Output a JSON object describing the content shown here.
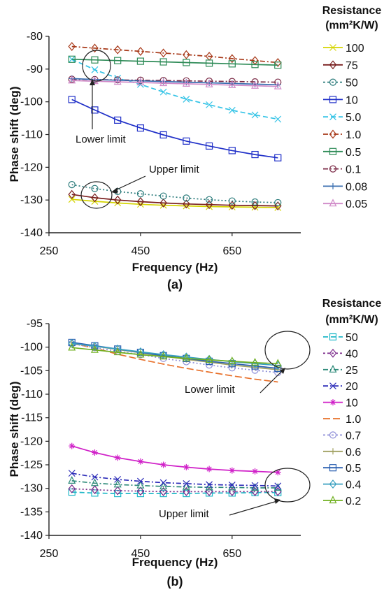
{
  "chart_data": [
    {
      "type": "line",
      "panel_label": "(a)",
      "xlabel": "Frequency (Hz)",
      "ylabel": "Phase shift (deg)",
      "xlim": [
        250,
        800
      ],
      "ylim": [
        -140,
        -80
      ],
      "xticks": [
        250,
        450,
        650
      ],
      "yticks": [
        -80,
        -90,
        -100,
        -110,
        -120,
        -130,
        -140
      ],
      "legend_title_line1": "Resistance",
      "legend_title_line2": "(mm²K/W)",
      "legend_position": "right",
      "x": [
        300,
        350,
        400,
        450,
        500,
        550,
        600,
        650,
        700,
        750
      ],
      "series": [
        {
          "name": "100",
          "color": "#d4d400",
          "marker": "x",
          "dash": "solid",
          "values": [
            -129.8,
            -130.4,
            -130.9,
            -131.3,
            -131.6,
            -131.8,
            -132.0,
            -132.1,
            -132.2,
            -132.3
          ]
        },
        {
          "name": "75",
          "color": "#7a1f1f",
          "marker": "diamond",
          "dash": "solid",
          "values": [
            -128.3,
            -129.3,
            -130.0,
            -130.5,
            -130.9,
            -131.2,
            -131.4,
            -131.6,
            -131.7,
            -131.8
          ]
        },
        {
          "name": "50",
          "color": "#2e7d7d",
          "marker": "circle",
          "dash": "dot",
          "values": [
            -125.3,
            -126.5,
            -127.4,
            -128.1,
            -128.8,
            -129.4,
            -129.9,
            -130.3,
            -130.6,
            -130.8
          ]
        },
        {
          "name": "10",
          "color": "#1f2fc8",
          "marker": "square",
          "dash": "solid",
          "values": [
            -99.3,
            -102.5,
            -105.6,
            -108.0,
            -110.1,
            -112.0,
            -113.5,
            -114.9,
            -116.1,
            -117.1
          ]
        },
        {
          "name": "5.0",
          "color": "#33c3e6",
          "marker": "x",
          "dash": "dash",
          "values": [
            -87.0,
            -90.2,
            -92.8,
            -94.7,
            -97.0,
            -99.2,
            -100.9,
            -102.6,
            -104.0,
            -105.3
          ]
        },
        {
          "name": "1.0",
          "color": "#a83a1a",
          "marker": "diamond",
          "dash": "dashdot",
          "values": [
            -83.1,
            -83.6,
            -84.1,
            -84.6,
            -85.1,
            -85.6,
            -86.1,
            -86.8,
            -87.4,
            -88.0
          ]
        },
        {
          "name": "0.5",
          "color": "#2e8b57",
          "marker": "square",
          "dash": "solid",
          "values": [
            -87.0,
            -87.2,
            -87.4,
            -87.6,
            -87.8,
            -88.0,
            -88.2,
            -88.4,
            -88.6,
            -88.8
          ]
        },
        {
          "name": "0.1",
          "color": "#7b2a46",
          "marker": "circle",
          "dash": "dashdot",
          "values": [
            -93.1,
            -93.2,
            -93.3,
            -93.4,
            -93.5,
            -93.6,
            -93.7,
            -93.8,
            -93.9,
            -94.0
          ]
        },
        {
          "name": "0.08",
          "color": "#3a6fb0",
          "marker": "plus",
          "dash": "solid",
          "values": [
            -92.9,
            -93.2,
            -93.4,
            -93.6,
            -93.8,
            -94.0,
            -94.2,
            -94.4,
            -94.6,
            -94.8
          ]
        },
        {
          "name": "0.05",
          "color": "#d08ac8",
          "marker": "triangle",
          "dash": "solid",
          "values": [
            -93.5,
            -93.7,
            -93.9,
            -94.1,
            -94.3,
            -94.5,
            -94.7,
            -94.9,
            -95.1,
            -95.3
          ]
        }
      ],
      "annotations": [
        {
          "text": "Lower limit"
        },
        {
          "text": "Upper limit"
        }
      ]
    },
    {
      "type": "line",
      "panel_label": "(b)",
      "xlabel": "Frequency (Hz)",
      "ylabel": "Phase shift (deg)",
      "xlim": [
        250,
        800
      ],
      "ylim": [
        -140,
        -95
      ],
      "xticks": [
        250,
        450,
        650
      ],
      "yticks": [
        -95,
        -100,
        -105,
        -110,
        -115,
        -120,
        -125,
        -130,
        -135,
        -140
      ],
      "legend_title_line1": "Resistance",
      "legend_title_line2": "(mm²K/W)",
      "legend_position": "right",
      "x": [
        300,
        350,
        400,
        450,
        500,
        550,
        600,
        650,
        700,
        750
      ],
      "series": [
        {
          "name": "50",
          "color": "#20b8c8",
          "marker": "square",
          "dash": "dash",
          "values": [
            -130.8,
            -131.0,
            -131.1,
            -131.1,
            -131.1,
            -131.1,
            -131.0,
            -131.0,
            -130.9,
            -130.9
          ]
        },
        {
          "name": "40",
          "color": "#7b2a8a",
          "marker": "diamond",
          "dash": "dot",
          "values": [
            -130.1,
            -130.3,
            -130.5,
            -130.6,
            -130.7,
            -130.7,
            -130.7,
            -130.7,
            -130.7,
            -130.7
          ]
        },
        {
          "name": "25",
          "color": "#2e8b7a",
          "marker": "triangle",
          "dash": "dashdot",
          "values": [
            -128.4,
            -128.9,
            -129.2,
            -129.4,
            -129.6,
            -129.7,
            -129.8,
            -129.8,
            -129.9,
            -129.9
          ]
        },
        {
          "name": "20",
          "color": "#2c2cb8",
          "marker": "x",
          "dash": "dashdot",
          "values": [
            -126.8,
            -127.6,
            -128.1,
            -128.5,
            -128.8,
            -129.0,
            -129.2,
            -129.3,
            -129.4,
            -129.5
          ]
        },
        {
          "name": "10",
          "color": "#d020c8",
          "marker": "star",
          "dash": "solid",
          "values": [
            -121.0,
            -122.4,
            -123.5,
            -124.3,
            -125.0,
            -125.5,
            -125.9,
            -126.2,
            -126.4,
            -126.6
          ]
        },
        {
          "name": "1.0",
          "color": "#e8702a",
          "marker": "none",
          "dash": "longdash",
          "values": [
            -99.2,
            -100.2,
            -101.5,
            -102.6,
            -103.6,
            -104.5,
            -105.3,
            -106.1,
            -106.8,
            -107.4
          ]
        },
        {
          "name": "0.7",
          "color": "#9090d8",
          "marker": "circle",
          "dash": "dot",
          "values": [
            -99.3,
            -100.1,
            -100.9,
            -101.6,
            -102.4,
            -103.1,
            -103.8,
            -104.4,
            -104.9,
            -105.4
          ]
        },
        {
          "name": "0.6",
          "color": "#a0a060",
          "marker": "plus",
          "dash": "solid",
          "values": [
            -99.1,
            -99.8,
            -100.5,
            -101.2,
            -101.9,
            -102.6,
            -103.2,
            -103.8,
            -104.3,
            -104.8
          ]
        },
        {
          "name": "0.5",
          "color": "#2a5fb0",
          "marker": "square",
          "dash": "solid",
          "values": [
            -99.0,
            -99.7,
            -100.4,
            -101.1,
            -101.8,
            -102.4,
            -103.0,
            -103.5,
            -104.0,
            -104.5
          ]
        },
        {
          "name": "0.4",
          "color": "#3aa0c0",
          "marker": "diamond",
          "dash": "solid",
          "values": [
            -99.2,
            -99.8,
            -100.4,
            -101.0,
            -101.6,
            -102.1,
            -102.6,
            -103.1,
            -103.5,
            -103.9
          ]
        },
        {
          "name": "0.2",
          "color": "#70b020",
          "marker": "triangle",
          "dash": "solid",
          "values": [
            -100.1,
            -100.6,
            -101.1,
            -101.6,
            -102.0,
            -102.4,
            -102.7,
            -103.0,
            -103.3,
            -103.5
          ]
        }
      ],
      "annotations": [
        {
          "text": "Lower limit"
        },
        {
          "text": "Upper limit"
        }
      ]
    }
  ]
}
